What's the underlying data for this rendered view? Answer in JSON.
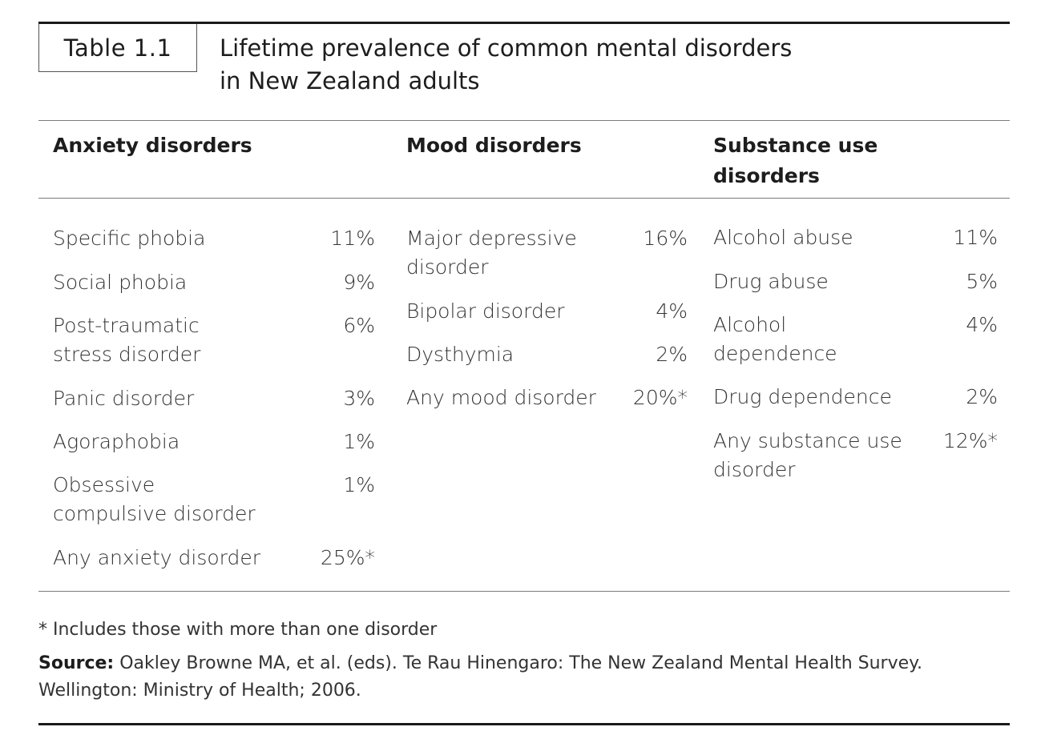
{
  "table_label": "Table 1.1",
  "title_line1": "Lifetime prevalence of common mental disorders",
  "title_line2": "in New Zealand adults",
  "columns": [
    {
      "heading_line1": "Anxiety disorders",
      "heading_line2": "",
      "rows": [
        {
          "label1": "Specific phobia",
          "label2": "",
          "value": "11%"
        },
        {
          "label1": "Social phobia",
          "label2": "",
          "value": "9%"
        },
        {
          "label1": "Post-traumatic",
          "label2": "stress disorder",
          "value": "6%"
        },
        {
          "label1": "Panic disorder",
          "label2": "",
          "value": "3%"
        },
        {
          "label1": "Agoraphobia",
          "label2": "",
          "value": "1%"
        },
        {
          "label1": "Obsessive",
          "label2": "compulsive disorder",
          "value": "1%"
        },
        {
          "label1": "Any anxiety disorder",
          "label2": "",
          "value": "25%*"
        }
      ]
    },
    {
      "heading_line1": "Mood disorders",
      "heading_line2": "",
      "rows": [
        {
          "label1": "Major depressive",
          "label2": "disorder",
          "value": "16%"
        },
        {
          "label1": "Bipolar disorder",
          "label2": "",
          "value": "4%"
        },
        {
          "label1": "Dysthymia",
          "label2": "",
          "value": "2%"
        },
        {
          "label1": "Any mood disorder",
          "label2": "",
          "value": "20%*"
        }
      ]
    },
    {
      "heading_line1": "Substance use",
      "heading_line2": "disorders",
      "rows": [
        {
          "label1": "Alcohol abuse",
          "label2": "",
          "value": "11%"
        },
        {
          "label1": "Drug abuse",
          "label2": "",
          "value": "5%"
        },
        {
          "label1": "Alcohol",
          "label2": "dependence",
          "value": "4%"
        },
        {
          "label1": "Drug dependence",
          "label2": "",
          "value": "2%"
        },
        {
          "label1": "Any substance use",
          "label2": "disorder",
          "value": "12%*"
        }
      ]
    }
  ],
  "footnote": "* Includes those with more than one disorder",
  "source_label": "Source:",
  "source_text": " Oakley Browne MA, et al. (eds). Te Rau Hinengaro: The New Zealand Mental Health Survey.",
  "source_line2": "Wellington: Ministry of Health; 2006."
}
